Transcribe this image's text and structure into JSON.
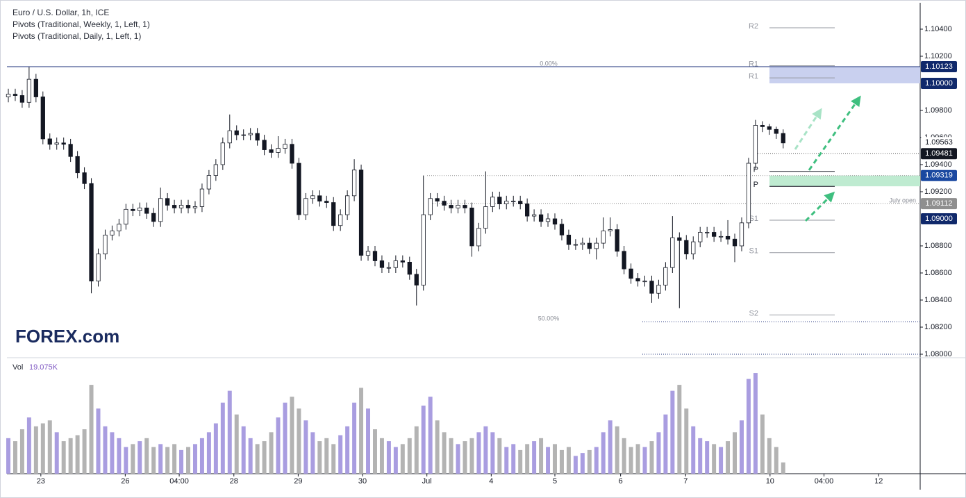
{
  "chart_data": {
    "type": "candlestick",
    "header": [
      "Euro / U.S. Dollar, 1h, ICE",
      "Pivots (Traditional, Weekly, 1, Left, 1)",
      "Pivots (Traditional, Daily, 1, Left, 1)"
    ],
    "logo": "FOREX.com",
    "up_color": "#ffffff",
    "down_color": "#131722",
    "wick_color": "#131722",
    "open": [
      1.099,
      1.0992,
      1.0991,
      1.0986,
      1.1003,
      1.099,
      1.0959,
      1.0955,
      1.0956,
      1.0955,
      1.0946,
      1.0934,
      1.0926,
      1.0854,
      1.0874,
      1.0888,
      1.0891,
      1.0896,
      1.0907,
      1.0906,
      1.0908,
      1.0904,
      1.0898,
      1.0915,
      1.091,
      1.0908,
      1.091,
      1.0908,
      1.0909,
      1.0922,
      1.0932,
      1.094,
      1.0956,
      1.0965,
      1.0962,
      1.0962,
      1.0963,
      1.0958,
      1.0951,
      1.0949,
      1.0952,
      1.0955,
      1.0941,
      1.0903,
      1.0915,
      1.0917,
      1.0913,
      1.0912,
      1.0895,
      1.0903,
      1.0917,
      1.0936,
      1.0873,
      1.0876,
      1.0869,
      1.0864,
      1.0864,
      1.0869,
      1.0868,
      1.0859,
      1.0851,
      1.0903,
      1.0915,
      1.0913,
      1.091,
      1.0908,
      1.091,
      1.0908,
      1.088,
      1.0893,
      1.0909,
      1.0916,
      1.0911,
      1.0913,
      1.0913,
      1.0911,
      1.0902,
      1.0903,
      1.0898,
      1.09,
      1.0896,
      1.0888,
      1.0881,
      1.0881,
      1.0882,
      1.0878,
      1.0882,
      1.0891,
      1.0892,
      1.0876,
      1.0863,
      1.0856,
      1.0854,
      1.0854,
      1.0845,
      1.0851,
      1.0864,
      1.0886,
      1.0884,
      1.0874,
      1.0883,
      1.089,
      1.089,
      1.0887,
      1.0887,
      1.0885,
      1.088,
      1.0897,
      1.0941,
      1.0969,
      1.0968,
      1.0966,
      1.0963
    ],
    "high": [
      1.0996,
      1.0996,
      1.0995,
      1.1012,
      1.1007,
      1.0994,
      1.0963,
      1.096,
      1.096,
      1.0959,
      1.095,
      1.0938,
      1.093,
      1.0878,
      1.0892,
      1.0895,
      1.09,
      1.0911,
      1.0911,
      1.0912,
      1.0912,
      1.0908,
      1.0923,
      1.0919,
      1.0914,
      1.0914,
      1.0914,
      1.0913,
      1.0926,
      1.0936,
      1.0944,
      1.096,
      1.0977,
      1.0969,
      1.0966,
      1.0967,
      1.0967,
      1.0962,
      1.0955,
      1.0961,
      1.0959,
      1.0959,
      1.0945,
      1.0919,
      1.0921,
      1.0921,
      1.0917,
      1.0916,
      1.0907,
      1.0921,
      1.0944,
      1.094,
      1.088,
      1.088,
      1.0873,
      1.0868,
      1.0873,
      1.0873,
      1.0872,
      1.0863,
      1.0932,
      1.0919,
      1.0919,
      1.0917,
      1.0914,
      1.0914,
      1.0914,
      1.0912,
      1.0897,
      1.0935,
      1.092,
      1.092,
      1.0917,
      1.0917,
      1.0917,
      1.0915,
      1.0907,
      1.0907,
      1.0904,
      1.0904,
      1.09,
      1.0892,
      1.0885,
      1.0886,
      1.0886,
      1.0886,
      1.0901,
      1.0901,
      1.0896,
      1.088,
      1.0867,
      1.086,
      1.0858,
      1.0858,
      1.0855,
      1.0868,
      1.0902,
      1.089,
      1.0888,
      1.0887,
      1.0894,
      1.0894,
      1.0894,
      1.0891,
      1.0899,
      1.0889,
      1.0901,
      1.0945,
      1.0973,
      1.0972,
      1.097,
      1.0968,
      1.0966
    ],
    "low": [
      1.0986,
      1.0987,
      1.0982,
      1.0982,
      1.0986,
      1.0955,
      1.0951,
      1.0951,
      1.0951,
      1.0942,
      1.093,
      1.0922,
      1.0845,
      1.085,
      1.087,
      1.0884,
      1.0887,
      1.0892,
      1.0902,
      1.0902,
      1.09,
      1.0894,
      1.0894,
      1.0906,
      1.0904,
      1.0904,
      1.0904,
      1.0904,
      1.0905,
      1.0918,
      1.0928,
      1.0936,
      1.0952,
      1.0958,
      1.0958,
      1.0958,
      1.0954,
      1.0947,
      1.0945,
      1.0945,
      1.0948,
      1.0937,
      1.0899,
      1.0899,
      1.0911,
      1.0909,
      1.0908,
      1.0891,
      1.0891,
      1.0899,
      1.0913,
      1.0869,
      1.0869,
      1.0865,
      1.086,
      1.086,
      1.086,
      1.0864,
      1.0855,
      1.0836,
      1.0847,
      1.0899,
      1.0909,
      1.0906,
      1.0904,
      1.0904,
      1.0904,
      1.0872,
      1.0876,
      1.0889,
      1.0905,
      1.0907,
      1.0907,
      1.0909,
      1.0907,
      1.0898,
      1.0898,
      1.0894,
      1.0894,
      1.0892,
      1.0884,
      1.0877,
      1.0877,
      1.0877,
      1.0874,
      1.087,
      1.0878,
      1.0887,
      1.0872,
      1.0859,
      1.0852,
      1.085,
      1.085,
      1.0838,
      1.0841,
      1.0847,
      1.086,
      1.0834,
      1.087,
      1.087,
      1.0879,
      1.0886,
      1.0883,
      1.0883,
      1.0881,
      1.0868,
      1.0876,
      1.0893,
      1.0937,
      1.0964,
      1.0962,
      1.0959,
      1.0952
    ],
    "close": [
      1.0992,
      1.0991,
      1.0986,
      1.1003,
      1.099,
      1.0959,
      1.0955,
      1.0956,
      1.0955,
      1.0946,
      1.0934,
      1.0926,
      1.0854,
      1.0874,
      1.0888,
      1.0891,
      1.0896,
      1.0907,
      1.0906,
      1.0908,
      1.0904,
      1.0898,
      1.0915,
      1.091,
      1.0908,
      1.091,
      1.0908,
      1.0909,
      1.0922,
      1.0932,
      1.094,
      1.0956,
      1.0965,
      1.0962,
      1.0962,
      1.0963,
      1.0958,
      1.0951,
      1.0949,
      1.0952,
      1.0955,
      1.0941,
      1.0903,
      1.0915,
      1.0917,
      1.0913,
      1.0912,
      1.0895,
      1.0903,
      1.0917,
      1.0936,
      1.0873,
      1.0876,
      1.0869,
      1.0864,
      1.0864,
      1.0869,
      1.0868,
      1.0859,
      1.0851,
      1.0903,
      1.0915,
      1.0913,
      1.091,
      1.0908,
      1.091,
      1.0908,
      1.088,
      1.0893,
      1.0909,
      1.0916,
      1.0911,
      1.0913,
      1.0913,
      1.0911,
      1.0902,
      1.0903,
      1.0898,
      1.09,
      1.0896,
      1.0888,
      1.0881,
      1.0881,
      1.0882,
      1.0878,
      1.0882,
      1.0891,
      1.0892,
      1.0876,
      1.0863,
      1.0856,
      1.0854,
      1.0854,
      1.0845,
      1.0851,
      1.0864,
      1.0886,
      1.0884,
      1.0874,
      1.0883,
      1.089,
      1.089,
      1.0887,
      1.0887,
      1.0885,
      1.088,
      1.0897,
      1.0941,
      1.0969,
      1.0968,
      1.0966,
      1.0963,
      1.0956
    ],
    "xlim": [
      -0.2,
      131.8
    ],
    "xticks": [
      {
        "value": 4.7,
        "label": "23"
      },
      {
        "value": 16.9,
        "label": "26"
      },
      {
        "value": 24.7,
        "label": "04:00"
      },
      {
        "value": 32.6,
        "label": "28"
      },
      {
        "value": 41.9,
        "label": "29"
      },
      {
        "value": 51.2,
        "label": "30"
      },
      {
        "value": 60.5,
        "label": "Jul"
      },
      {
        "value": 69.8,
        "label": "4"
      },
      {
        "value": 79,
        "label": "5"
      },
      {
        "value": 88.5,
        "label": "6"
      },
      {
        "value": 97.9,
        "label": "7"
      },
      {
        "value": 110.1,
        "label": "10"
      },
      {
        "value": 117.9,
        "label": "04:00"
      },
      {
        "value": 125.8,
        "label": "12"
      }
    ],
    "ylim": [
      1.08,
      1.10564
    ],
    "yticks": [
      {
        "value": 1.104,
        "label": "1.10400"
      },
      {
        "value": 1.102,
        "label": "1.10200"
      },
      {
        "value": 1.098,
        "label": "1.09800"
      },
      {
        "value": 1.096,
        "label": "1.09600"
      },
      {
        "value": 1.094,
        "label": "1.09400"
      },
      {
        "value": 1.092,
        "label": "1.09200"
      },
      {
        "value": 1.088,
        "label": "1.08800"
      },
      {
        "value": 1.086,
        "label": "1.08600"
      },
      {
        "value": 1.084,
        "label": "1.08400"
      },
      {
        "value": 1.082,
        "label": "1.08200"
      },
      {
        "value": 1.08,
        "label": "1.08000"
      }
    ],
    "grid": false,
    "zones": [
      {
        "from": 1.1,
        "to": 1.10123,
        "color": "#c9d0ef"
      },
      {
        "from": 1.0924,
        "to": 1.09319,
        "color": "#bfebd1"
      }
    ],
    "levels": [
      {
        "value": 1.10123,
        "label": "0.00%",
        "color": "#1b2f7a"
      },
      {
        "value": 1.0824,
        "label": "50.00%",
        "color": "#1b2f7a"
      },
      {
        "value": 1.09481,
        "color": "#555555"
      },
      {
        "value": 1.09319,
        "color": "#888888"
      },
      {
        "value": 1.09112,
        "label": "July open",
        "color": "#888888"
      },
      {
        "value": 1.08,
        "color": "#1b2f7a"
      }
    ],
    "pivots": [
      {
        "label": "R2",
        "value": 1.1041,
        "color": "#9598a1"
      },
      {
        "label": "R1",
        "value": 1.1013,
        "color": "#9598a1"
      },
      {
        "label": "R1",
        "value": 1.1004,
        "color": "#9598a1"
      },
      {
        "label": "P",
        "value": 1.0935,
        "color": "#131722"
      },
      {
        "label": "P",
        "value": 1.0924,
        "color": "#131722"
      },
      {
        "label": "S1",
        "value": 1.0899,
        "color": "#9598a1"
      },
      {
        "label": "S1",
        "value": 1.0875,
        "color": "#9598a1"
      },
      {
        "label": "S2",
        "value": 1.0829,
        "color": "#9598a1"
      }
    ],
    "price_labels": [
      {
        "value": 1.10123,
        "label": "1.10123",
        "color": "#10296b"
      },
      {
        "value": 1.1,
        "label": "1.10000",
        "color": "#10296b"
      },
      {
        "value": 1.09563,
        "label": "1.09563",
        "color": "#ffffff"
      },
      {
        "value": 1.09481,
        "label": "1.09481",
        "color": "#131722"
      },
      {
        "value": 1.09319,
        "label": "1.09319",
        "color": "#1a48a0"
      },
      {
        "value": 1.09112,
        "label": "1.09112",
        "color": "#8f8f8f"
      },
      {
        "value": 1.09,
        "label": "1.09000",
        "color": "#10296b"
      }
    ],
    "volume": {
      "name": "Vol",
      "up_color": "#a99de0",
      "down_color": "#b3b3b3",
      "ylim": [
        0,
        190
      ],
      "last_label": "19.075K",
      "values": [
        60,
        55,
        75,
        95,
        80,
        85,
        90,
        70,
        55,
        60,
        65,
        75,
        150,
        110,
        80,
        70,
        60,
        45,
        50,
        55,
        60,
        45,
        50,
        45,
        50,
        40,
        45,
        50,
        60,
        70,
        85,
        120,
        140,
        100,
        80,
        60,
        50,
        55,
        70,
        95,
        120,
        130,
        110,
        90,
        70,
        55,
        60,
        50,
        65,
        80,
        120,
        145,
        110,
        75,
        60,
        55,
        45,
        50,
        60,
        80,
        115,
        130,
        90,
        70,
        60,
        50,
        55,
        60,
        70,
        80,
        70,
        60,
        45,
        50,
        40,
        50,
        55,
        60,
        45,
        50,
        40,
        45,
        30,
        35,
        40,
        45,
        70,
        90,
        80,
        60,
        45,
        50,
        45,
        55,
        70,
        100,
        140,
        150,
        110,
        80,
        60,
        55,
        50,
        45,
        55,
        70,
        90,
        160,
        170,
        100,
        60,
        45,
        19.075
      ]
    }
  }
}
